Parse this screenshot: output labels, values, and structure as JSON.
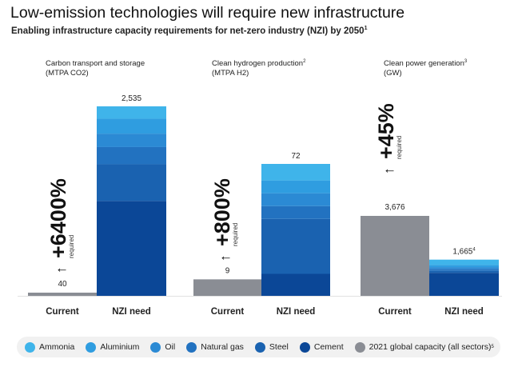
{
  "title": "Low-emission technologies will require new infrastructure",
  "subtitle": "Enabling infrastructure capacity requirements for net-zero industry (NZI) by 2050",
  "subtitle_footnote": "1",
  "colors": {
    "Ammonia": "#3fb4ea",
    "Aluminium": "#2f9de0",
    "Oil": "#2b8ad4",
    "Natural gas": "#2272c0",
    "Steel": "#1a62b0",
    "Cement": "#0b4797",
    "2021 global capacity (all sectors)": "#8a8d94"
  },
  "arrow_glyph": "↑",
  "legend": {
    "items": [
      {
        "label": "Ammonia",
        "color": "#3fb4ea"
      },
      {
        "label": "Aluminium",
        "color": "#2f9de0"
      },
      {
        "label": "Oil",
        "color": "#2b8ad4"
      },
      {
        "label": "Natural gas",
        "color": "#2272c0"
      },
      {
        "label": "Steel",
        "color": "#1a62b0"
      },
      {
        "label": "Cement",
        "color": "#0b4797"
      },
      {
        "label": "2021 global capacity (all sectors)",
        "color": "#8a8d94",
        "footnote": "5"
      }
    ]
  },
  "chart_data": [
    {
      "type": "bar",
      "title": "Carbon transport and storage",
      "unit": "(MTPA CO2)",
      "categories": [
        "Current",
        "NZI need"
      ],
      "current": {
        "value": 40,
        "label": "40"
      },
      "nzi": {
        "total": 2535,
        "label": "2,535",
        "stack_order": [
          "Cement",
          "Steel",
          "Natural gas",
          "Oil",
          "Aluminium",
          "Ammonia"
        ],
        "segments": [
          1270,
          490,
          230,
          180,
          200,
          165
        ]
      },
      "increase": {
        "text": "+6400%",
        "note": "required"
      },
      "ylim": [
        0,
        2535
      ]
    },
    {
      "type": "bar",
      "title": "Clean hydrogen production",
      "title_footnote": "2",
      "unit": "(MTPA H2)",
      "categories": [
        "Current",
        "NZI need"
      ],
      "current": {
        "value": 9,
        "label": "9"
      },
      "nzi": {
        "total": 72,
        "label": "72",
        "stack_order": [
          "Cement",
          "Steel",
          "Natural gas",
          "Oil",
          "Aluminium",
          "Ammonia"
        ],
        "segments": [
          12,
          30,
          7,
          7,
          7,
          9
        ]
      },
      "increase": {
        "text": "+800%",
        "note": "required"
      },
      "ylim": [
        0,
        72
      ]
    },
    {
      "type": "bar",
      "title": "Clean power generation",
      "title_footnote": "3",
      "unit": "(GW)",
      "categories": [
        "Current",
        "NZI need"
      ],
      "current": {
        "value": 3676,
        "label": "3,676"
      },
      "nzi": {
        "total": 1665,
        "label": "1,665",
        "label_footnote": "4",
        "stack_order": [
          "Cement",
          "Steel",
          "Natural gas",
          "Oil",
          "Aluminium",
          "Ammonia"
        ],
        "segments": [
          1060,
          90,
          90,
          80,
          100,
          245
        ]
      },
      "increase": {
        "text": "+45%",
        "note": "required"
      },
      "ylim": [
        0,
        3676
      ]
    }
  ]
}
